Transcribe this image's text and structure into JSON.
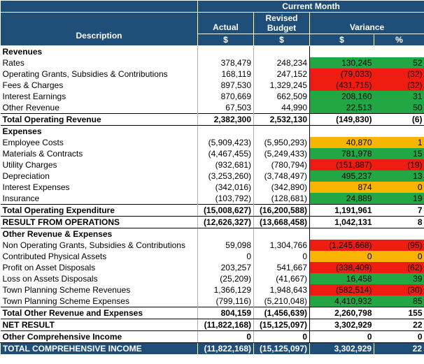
{
  "header": {
    "current_month": "Current Month",
    "description": "Description",
    "actual": "Actual",
    "revised_budget": "Revised Budget",
    "variance": "Variance",
    "currency": "$",
    "percent": "%"
  },
  "rows": [
    {
      "label": "Revenues",
      "style": "section"
    },
    {
      "label": "Rates",
      "actual": "378,479",
      "budget": "248,234",
      "variance": "130,245",
      "pct": "52",
      "color": "green"
    },
    {
      "label": "Operating Grants, Subsidies & Contributions",
      "actual": "168,119",
      "budget": "247,152",
      "variance": "(79,033)",
      "pct": "(32)",
      "color": "red"
    },
    {
      "label": "Fees & Charges",
      "actual": "897,530",
      "budget": "1,329,245",
      "variance": "(431,715)",
      "pct": "(32)",
      "color": "red"
    },
    {
      "label": "Interest Earnings",
      "actual": "870,669",
      "budget": "662,509",
      "variance": "208,160",
      "pct": "31",
      "color": "green"
    },
    {
      "label": "Other Revenue",
      "actual": "67,503",
      "budget": "44,990",
      "variance": "22,513",
      "pct": "50",
      "color": "green"
    },
    {
      "label": "Total Operating Revenue",
      "actual": "2,382,300",
      "budget": "2,532,130",
      "variance": "(149,830)",
      "pct": "(6)",
      "style": "total"
    },
    {
      "label": "Expenses",
      "style": "section"
    },
    {
      "label": "Employee Costs",
      "actual": "(5,909,423)",
      "budget": "(5,950,293)",
      "variance": "40,870",
      "pct": "1",
      "color": "amber"
    },
    {
      "label": "Materials & Contracts",
      "actual": "(4,467,455)",
      "budget": "(5,249,433)",
      "variance": "781,978",
      "pct": "15",
      "color": "green"
    },
    {
      "label": "Utility Charges",
      "actual": "(932,681)",
      "budget": "(780,794)",
      "variance": "(151,887)",
      "pct": "(19)",
      "color": "red"
    },
    {
      "label": "Depreciation",
      "actual": "(3,253,260)",
      "budget": "(3,748,497)",
      "variance": "495,237",
      "pct": "13",
      "color": "green"
    },
    {
      "label": "Interest Expenses",
      "actual": "(342,016)",
      "budget": "(342,890)",
      "variance": "874",
      "pct": "0",
      "color": "amber"
    },
    {
      "label": "Insurance",
      "actual": "(103,792)",
      "budget": "(128,681)",
      "variance": "24,889",
      "pct": "19",
      "color": "green"
    },
    {
      "label": "Total Operating Expenditure",
      "actual": "(15,008,627)",
      "budget": "(16,200,588)",
      "variance": "1,191,961",
      "pct": "7",
      "style": "total"
    },
    {
      "label": "RESULT FROM OPERATIONS",
      "actual": "(12,626,327)",
      "budget": "(13,668,458)",
      "variance": "1,042,131",
      "pct": "8",
      "style": "total"
    },
    {
      "label": "Other Revenue & Expenses",
      "style": "section"
    },
    {
      "label": "Non Operating Grants, Subsidies & Contributions",
      "actual": "59,098",
      "budget": "1,304,766",
      "variance": "(1,245,668)",
      "pct": "(95)",
      "color": "red"
    },
    {
      "label": "Contributed Physical Assets",
      "actual": "0",
      "budget": "0",
      "variance": "0",
      "pct": "0",
      "color": "amber"
    },
    {
      "label": "Profit on Asset Disposals",
      "actual": "203,257",
      "budget": "541,667",
      "variance": "(338,409)",
      "pct": "(62)",
      "color": "red"
    },
    {
      "label": "Loss on Assets Disposals",
      "actual": "(25,209)",
      "budget": "(41,667)",
      "variance": "16,458",
      "pct": "39",
      "color": "green"
    },
    {
      "label": "Town Planning Scheme Revenues",
      "actual": "1,366,129",
      "budget": "1,948,643",
      "variance": "(582,514)",
      "pct": "(30)",
      "color": "red"
    },
    {
      "label": "Town Planning Scheme Expenses",
      "actual": "(799,116)",
      "budget": "(5,210,048)",
      "variance": "4,410,932",
      "pct": "85",
      "color": "green"
    },
    {
      "label": "Total Other Revenue and Expenses",
      "actual": "804,159",
      "budget": "(1,456,639)",
      "variance": "2,260,798",
      "pct": "155",
      "style": "total"
    },
    {
      "label": "NET RESULT",
      "actual": "(11,822,168)",
      "budget": "(15,125,097)",
      "variance": "3,302,929",
      "pct": "22",
      "style": "total"
    },
    {
      "label": "Other Comprehensive Income",
      "actual": "0",
      "budget": "0",
      "variance": "0",
      "pct": "0",
      "style": "total"
    },
    {
      "label": "TOTAL COMPREHENSIVE INCOME",
      "actual": "(11,822,168)",
      "budget": "(15,125,097)",
      "variance": "3,302,929",
      "pct": "22",
      "style": "grand"
    }
  ]
}
